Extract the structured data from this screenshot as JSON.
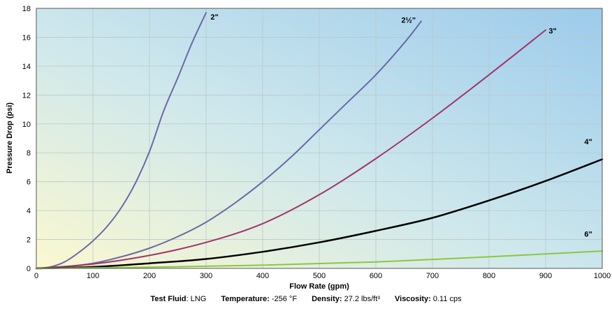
{
  "chart_data": {
    "type": "line",
    "xlabel": "Flow Rate (gpm)",
    "ylabel": "Pressure Drop (psi)",
    "xlim": [
      0,
      1000
    ],
    "ylim": [
      0,
      18
    ],
    "x_ticks": [
      0,
      100,
      200,
      300,
      400,
      500,
      600,
      700,
      800,
      900,
      1000
    ],
    "y_ticks": [
      0,
      2,
      4,
      6,
      8,
      10,
      12,
      14,
      16,
      18
    ],
    "grid": true,
    "legend": "inline labels at line ends",
    "background": "gradient: pale yellow bottom-left to light blue top-right",
    "series": [
      {
        "name": "2\"",
        "color": "#6a6aa8",
        "width": 2,
        "x": [
          0,
          25,
          50,
          75,
          100,
          125,
          150,
          175,
          200,
          225,
          250,
          275,
          300
        ],
        "y": [
          0,
          0.1,
          0.45,
          1.1,
          1.9,
          2.9,
          4.2,
          5.9,
          8.1,
          10.9,
          13.2,
          15.6,
          17.7
        ]
      },
      {
        "name": "2½\"",
        "color": "#6a6aa8",
        "width": 2,
        "x": [
          0,
          50,
          100,
          150,
          200,
          250,
          300,
          350,
          400,
          450,
          500,
          550,
          600,
          650,
          680
        ],
        "y": [
          0,
          0.12,
          0.35,
          0.8,
          1.4,
          2.2,
          3.2,
          4.5,
          6.0,
          7.7,
          9.6,
          11.5,
          13.4,
          15.6,
          17.1
        ]
      },
      {
        "name": "3\"",
        "color": "#a3336a",
        "width": 2,
        "x": [
          0,
          100,
          200,
          300,
          400,
          500,
          600,
          700,
          800,
          900
        ],
        "y": [
          0,
          0.3,
          0.9,
          1.8,
          3.1,
          5.1,
          7.6,
          10.4,
          13.4,
          16.5
        ]
      },
      {
        "name": "4\"",
        "color": "#000000",
        "width": 2.5,
        "x": [
          0,
          100,
          200,
          300,
          400,
          500,
          600,
          700,
          800,
          900,
          1000
        ],
        "y": [
          0,
          0.1,
          0.35,
          0.65,
          1.15,
          1.8,
          2.6,
          3.5,
          4.7,
          6.05,
          7.55
        ]
      },
      {
        "name": "6\"",
        "color": "#8dc63f",
        "width": 2,
        "x": [
          0,
          200,
          400,
          600,
          800,
          1000
        ],
        "y": [
          0,
          0.08,
          0.22,
          0.45,
          0.8,
          1.2
        ]
      }
    ]
  },
  "caption": {
    "test_fluid_label": "Test Fluid",
    "test_fluid_value": ": LNG",
    "temperature_label": "Temperature:",
    "temperature_value": " -256 °F",
    "density_label": "Density:",
    "density_value": " 27.2 lbs/ft³",
    "viscosity_label": "Viscosity:",
    "viscosity_value": " 0.11 cps"
  }
}
